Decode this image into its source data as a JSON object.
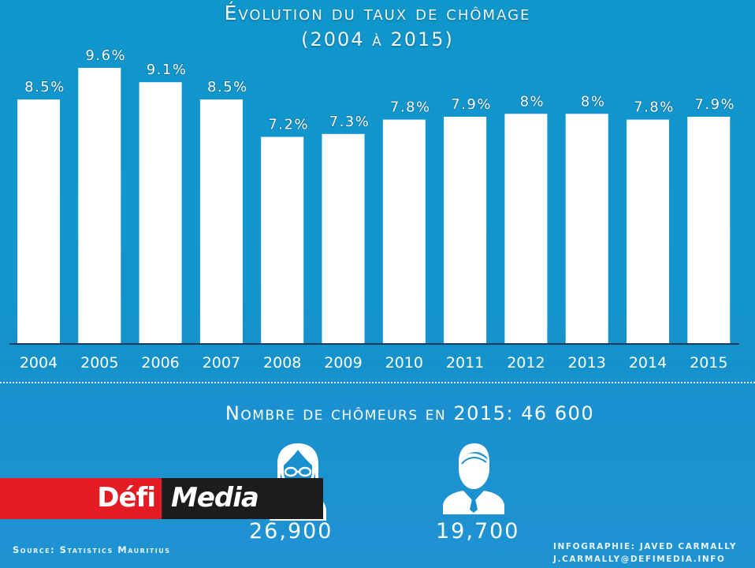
{
  "header": {
    "title_line1": "Évolution du taux de chômage",
    "title_line2": "(2004 à 2015)"
  },
  "chart_data": {
    "type": "bar",
    "title": "Évolution du taux de chômage (2004 à 2015)",
    "xlabel": "",
    "ylabel": "",
    "categories": [
      "2004",
      "2005",
      "2006",
      "2007",
      "2008",
      "2009",
      "2010",
      "2011",
      "2012",
      "2013",
      "2014",
      "2015"
    ],
    "values": [
      8.5,
      9.6,
      9.1,
      8.5,
      7.2,
      7.3,
      7.8,
      7.9,
      8,
      8,
      7.8,
      7.9
    ],
    "value_labels": [
      "8.5%",
      "9.6%",
      "9.1%",
      "8.5%",
      "7.2%",
      "7.3%",
      "7.8%",
      "7.9%",
      "8%",
      "8%",
      "7.8%",
      "7.9%"
    ],
    "ylim": [
      0,
      10
    ],
    "grid": false,
    "legend": "none",
    "colors": {
      "bar": "#ffffff",
      "background": "#1196cd"
    }
  },
  "summary": {
    "title": "Nombre de chômeurs en 2015: 46 600",
    "women": {
      "icon": "woman-user-icon",
      "count": "26,900"
    },
    "men": {
      "icon": "man-user-icon",
      "count": "19,700"
    }
  },
  "footer": {
    "source": "Source: Statistics Mauritius",
    "credit_line1": "INFOGRAPHIE: JAVED CARMALLY",
    "credit_line2": "J.CARMALLY@DEFIMEDIA.INFO"
  },
  "logo": {
    "part1": "Défi",
    "part2": "Media",
    "colors": {
      "red": "#e31c23",
      "black": "#1e1b1f"
    }
  }
}
